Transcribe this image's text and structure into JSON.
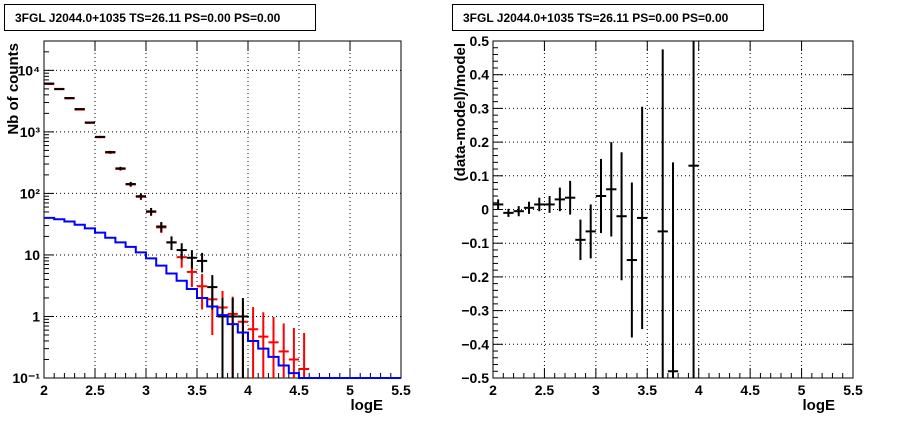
{
  "chart_data": [
    {
      "type": "line",
      "title": "3FGL J2044.0+1035 TS=26.11 PS=0.00 PS=0.00",
      "xlabel": "logE",
      "ylabel": "Nb of counts",
      "xlim": [
        2,
        5.5
      ],
      "ylim": [
        0.1,
        30000
      ],
      "yscale": "log",
      "grid": true,
      "x_ticks": [
        "2",
        "2.5",
        "3",
        "3.5",
        "4",
        "4.5",
        "5",
        "5.5"
      ],
      "y_ticks": [
        "10⁻¹",
        "1",
        "10",
        "10²",
        "10³",
        "10⁴"
      ],
      "series": [
        {
          "color": "#ff0000",
          "style": "error-bars",
          "x": [
            2.05,
            2.15,
            2.25,
            2.35,
            2.45,
            2.55,
            2.65,
            2.75,
            2.85,
            2.95,
            3.05,
            3.15,
            3.25,
            3.35,
            3.45,
            3.55,
            3.65,
            3.75,
            3.85,
            3.95,
            4.05,
            4.15,
            4.25,
            4.35,
            4.45,
            4.55
          ],
          "y": [
            6000,
            5000,
            3500,
            2300,
            1400,
            820,
            460,
            250,
            140,
            88,
            50,
            28,
            16,
            9.2,
            5.3,
            3.1,
            1.9,
            1.4,
            1.1,
            0.82,
            0.62,
            0.47,
            0.38,
            0.27,
            0.2,
            0.14
          ],
          "yerr_low": [
            80,
            70,
            60,
            50,
            40,
            30,
            22,
            16,
            12,
            10,
            7,
            5.3,
            4,
            3,
            2.3,
            1.8,
            1.4,
            1.2,
            1.0,
            0.9,
            0.62,
            0.47,
            0.38,
            0.27,
            0.2,
            0.14
          ],
          "yerr_high": [
            80,
            70,
            60,
            50,
            40,
            30,
            22,
            16,
            12,
            10,
            7,
            5.3,
            4,
            3,
            2.3,
            1.8,
            1.4,
            1.2,
            1.0,
            0.9,
            0.8,
            0.7,
            0.6,
            0.5,
            0.45,
            0.4
          ]
        },
        {
          "color": "#000000",
          "style": "error-bars",
          "x": [
            2.05,
            2.15,
            2.25,
            2.35,
            2.45,
            2.55,
            2.65,
            2.75,
            2.85,
            2.95,
            3.05,
            3.15,
            3.25,
            3.35,
            3.45,
            3.55,
            3.65,
            3.75,
            3.85,
            3.95
          ],
          "y": [
            6100,
            4950,
            3550,
            2350,
            1420,
            830,
            470,
            255,
            142,
            90,
            51,
            29,
            16,
            12,
            9,
            8,
            3,
            1,
            1,
            1
          ],
          "yerr_low": [
            80,
            70,
            60,
            50,
            40,
            30,
            22,
            16,
            12,
            10,
            7,
            5.3,
            4,
            3.5,
            3,
            2.8,
            1.7,
            0.999,
            0.999,
            0.999
          ],
          "yerr_high": [
            80,
            70,
            60,
            50,
            40,
            30,
            22,
            16,
            12,
            10,
            7,
            5.3,
            4,
            3.5,
            3,
            2.8,
            1.7,
            1.0,
            1.0,
            1.0
          ]
        },
        {
          "color": "#0000ff",
          "style": "step",
          "edges": [
            2.0,
            2.1,
            2.2,
            2.3,
            2.4,
            2.5,
            2.6,
            2.7,
            2.8,
            2.9,
            3.0,
            3.1,
            3.2,
            3.3,
            3.4,
            3.5,
            3.6,
            3.7,
            3.8,
            3.9,
            4.0,
            4.1,
            4.2,
            4.3,
            4.4,
            4.5,
            4.6,
            5.5
          ],
          "values": [
            40,
            38,
            35,
            31,
            27,
            23,
            19,
            16,
            13.5,
            11,
            8.8,
            6.7,
            5,
            3.8,
            2.8,
            2.0,
            1.45,
            1.05,
            0.75,
            0.55,
            0.4,
            0.3,
            0.22,
            0.16,
            0.12,
            0.1,
            0.1
          ]
        }
      ]
    },
    {
      "type": "scatter",
      "title": "3FGL J2044.0+1035 TS=26.11 PS=0.00 PS=0.00",
      "xlabel": "logE",
      "ylabel": "(data-model)/model",
      "xlim": [
        2,
        5.5
      ],
      "ylim": [
        -0.5,
        0.5
      ],
      "grid": true,
      "x_ticks": [
        "2",
        "2.5",
        "3",
        "3.5",
        "4",
        "4.5",
        "5",
        "5.5"
      ],
      "y_ticks": [
        "−0.5",
        "−0.4",
        "−0.3",
        "−0.2",
        "−0.1",
        "0",
        "0.1",
        "0.2",
        "0.3",
        "0.4",
        "0.5"
      ],
      "series": [
        {
          "color": "#000000",
          "style": "error-bars",
          "x": [
            2.05,
            2.15,
            2.25,
            2.35,
            2.45,
            2.55,
            2.65,
            2.75,
            2.85,
            2.95,
            3.05,
            3.15,
            3.25,
            3.35,
            3.45,
            3.65,
            3.75,
            3.95
          ],
          "y": [
            0.015,
            -0.01,
            -0.005,
            0.005,
            0.015,
            0.015,
            0.03,
            0.035,
            -0.09,
            -0.065,
            0.04,
            0.06,
            -0.02,
            -0.15,
            -0.025,
            -0.065,
            -0.48,
            0.13
          ],
          "yerr": [
            0.015,
            0.012,
            0.015,
            0.018,
            0.02,
            0.025,
            0.035,
            0.05,
            0.06,
            0.08,
            0.11,
            0.14,
            0.19,
            0.23,
            0.33,
            0.54,
            0.62,
            0.63
          ]
        }
      ]
    }
  ]
}
